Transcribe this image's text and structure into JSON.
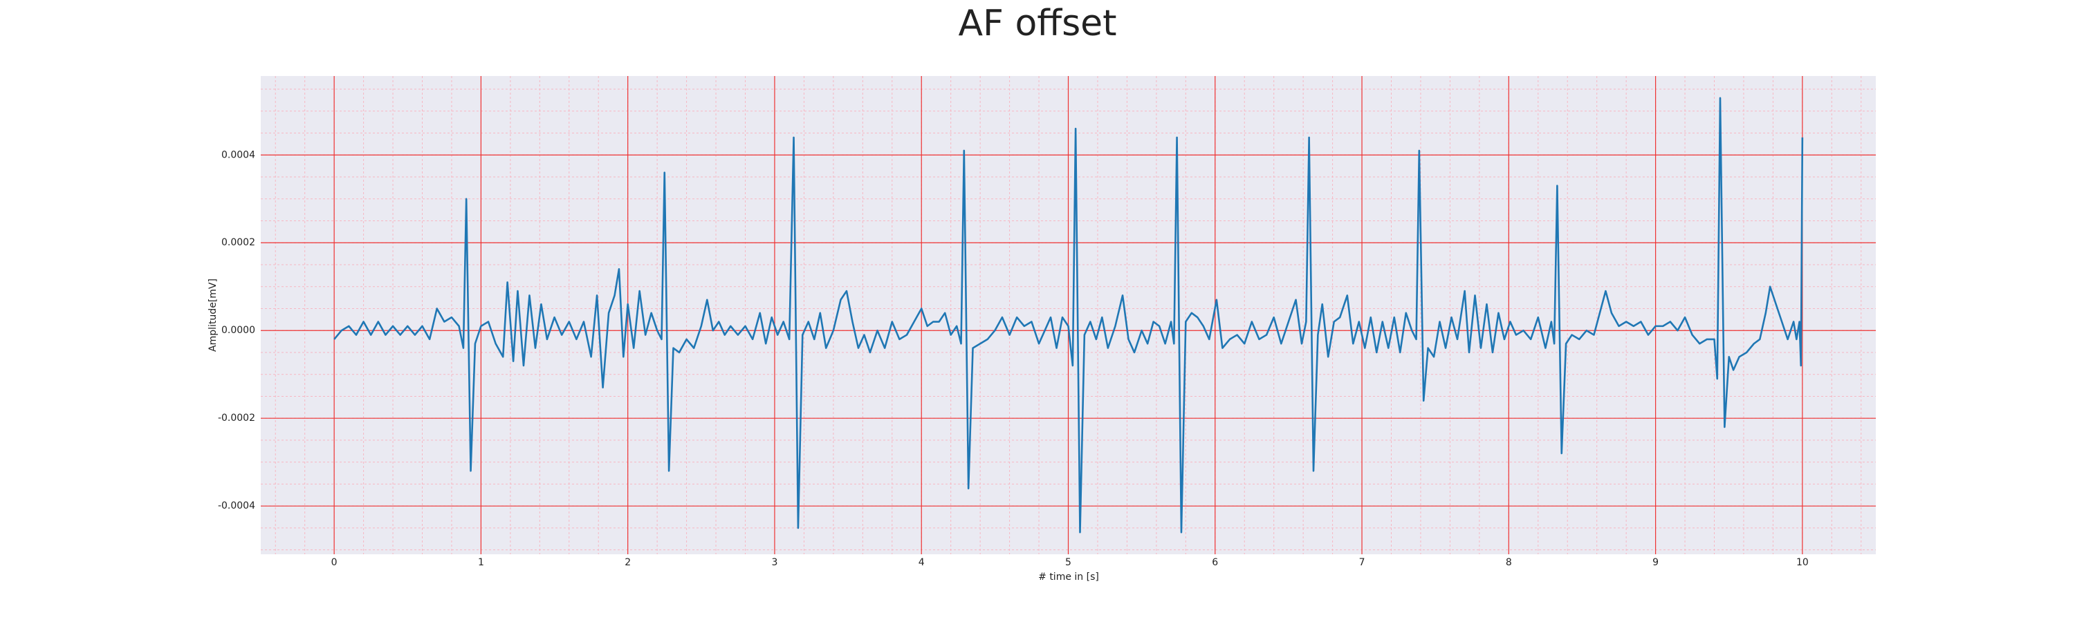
{
  "chart_data": {
    "type": "line",
    "title": "AF offset",
    "xlabel": "# time in [s]",
    "ylabel": "Amplitude[mV]",
    "color": "#1f77b4",
    "grid": true,
    "minor_grid": {
      "x": 0.2,
      "y": 5e-05
    },
    "xlim": [
      -0.5,
      10.5
    ],
    "xticks": [
      0,
      1,
      2,
      3,
      4,
      5,
      6,
      7,
      8,
      9,
      10
    ],
    "ylim": [
      -0.00051,
      0.00058
    ],
    "yticks": [
      {
        "value": -0.0004,
        "label": "-0.0004"
      },
      {
        "value": -0.0002,
        "label": "-0.0002"
      },
      {
        "value": 0,
        "label": "0.0000"
      },
      {
        "value": 0.0002,
        "label": "0.0002"
      },
      {
        "value": 0.0004,
        "label": "0.0004"
      }
    ],
    "x": [
      0.0,
      0.05,
      0.1,
      0.15,
      0.2,
      0.25,
      0.3,
      0.35,
      0.4,
      0.45,
      0.5,
      0.55,
      0.6,
      0.65,
      0.7,
      0.75,
      0.8,
      0.85,
      0.88,
      0.9,
      0.93,
      0.96,
      1.0,
      1.05,
      1.1,
      1.15,
      1.18,
      1.22,
      1.25,
      1.29,
      1.33,
      1.37,
      1.41,
      1.45,
      1.5,
      1.55,
      1.6,
      1.65,
      1.7,
      1.75,
      1.79,
      1.83,
      1.87,
      1.91,
      1.94,
      1.97,
      2.0,
      2.04,
      2.08,
      2.12,
      2.16,
      2.2,
      2.23,
      2.25,
      2.28,
      2.31,
      2.35,
      2.4,
      2.45,
      2.5,
      2.54,
      2.58,
      2.62,
      2.66,
      2.7,
      2.75,
      2.8,
      2.85,
      2.9,
      2.94,
      2.98,
      3.02,
      3.06,
      3.1,
      3.13,
      3.16,
      3.19,
      3.23,
      3.27,
      3.31,
      3.35,
      3.4,
      3.45,
      3.49,
      3.53,
      3.57,
      3.61,
      3.65,
      3.7,
      3.75,
      3.8,
      3.85,
      3.9,
      3.95,
      4.0,
      4.04,
      4.08,
      4.12,
      4.16,
      4.2,
      4.24,
      4.27,
      4.29,
      4.32,
      4.35,
      4.4,
      4.45,
      4.5,
      4.55,
      4.6,
      4.65,
      4.7,
      4.75,
      4.8,
      4.84,
      4.88,
      4.92,
      4.96,
      5.0,
      5.03,
      5.05,
      5.08,
      5.11,
      5.15,
      5.19,
      5.23,
      5.27,
      5.32,
      5.37,
      5.41,
      5.45,
      5.5,
      5.54,
      5.58,
      5.62,
      5.66,
      5.7,
      5.72,
      5.74,
      5.77,
      5.8,
      5.84,
      5.88,
      5.92,
      5.96,
      6.01,
      6.05,
      6.1,
      6.15,
      6.2,
      6.25,
      6.3,
      6.35,
      6.4,
      6.45,
      6.5,
      6.55,
      6.59,
      6.62,
      6.64,
      6.67,
      6.7,
      6.73,
      6.77,
      6.81,
      6.85,
      6.9,
      6.94,
      6.98,
      7.02,
      7.06,
      7.1,
      7.14,
      7.18,
      7.22,
      7.26,
      7.3,
      7.34,
      7.37,
      7.39,
      7.42,
      7.45,
      7.49,
      7.53,
      7.57,
      7.61,
      7.65,
      7.7,
      7.73,
      7.77,
      7.81,
      7.85,
      7.89,
      7.93,
      7.97,
      8.01,
      8.05,
      8.1,
      8.15,
      8.2,
      8.25,
      8.29,
      8.31,
      8.33,
      8.36,
      8.39,
      8.43,
      8.48,
      8.53,
      8.58,
      8.62,
      8.66,
      8.7,
      8.75,
      8.8,
      8.85,
      8.9,
      8.95,
      9.0,
      9.05,
      9.1,
      9.15,
      9.2,
      9.25,
      9.3,
      9.35,
      9.4,
      9.42,
      9.44,
      9.47,
      9.5,
      9.53,
      9.57,
      9.62,
      9.67,
      9.71,
      9.75,
      9.78,
      9.82,
      9.86,
      9.9,
      9.94,
      9.96,
      9.98,
      9.99,
      10.0
    ],
    "values": [
      -2e-05,
      0.0,
      1e-05,
      -1e-05,
      2e-05,
      -1e-05,
      2e-05,
      -1e-05,
      1e-05,
      -1e-05,
      1e-05,
      -1e-05,
      1e-05,
      -2e-05,
      5e-05,
      2e-05,
      3e-05,
      1e-05,
      -4e-05,
      0.0003,
      -0.00032,
      -3e-05,
      1e-05,
      2e-05,
      -3e-05,
      -6e-05,
      0.00011,
      -7e-05,
      9e-05,
      -8e-05,
      8e-05,
      -4e-05,
      6e-05,
      -2e-05,
      3e-05,
      -1e-05,
      2e-05,
      -2e-05,
      2e-05,
      -6e-05,
      8e-05,
      -0.00013,
      4e-05,
      8e-05,
      0.00014,
      -6e-05,
      6e-05,
      -4e-05,
      9e-05,
      -1e-05,
      4e-05,
      0.0,
      -2e-05,
      0.00036,
      -0.00032,
      -4e-05,
      -5e-05,
      -2e-05,
      -4e-05,
      1e-05,
      7e-05,
      0.0,
      2e-05,
      -1e-05,
      1e-05,
      -1e-05,
      1e-05,
      -2e-05,
      4e-05,
      -3e-05,
      3e-05,
      -1e-05,
      2e-05,
      -2e-05,
      0.00044,
      -0.00045,
      -1e-05,
      2e-05,
      -2e-05,
      4e-05,
      -4e-05,
      0.0,
      7e-05,
      9e-05,
      2e-05,
      -4e-05,
      -1e-05,
      -5e-05,
      0.0,
      -4e-05,
      2e-05,
      -2e-05,
      -1e-05,
      2e-05,
      5e-05,
      1e-05,
      2e-05,
      2e-05,
      4e-05,
      -1e-05,
      1e-05,
      -3e-05,
      0.00041,
      -0.00036,
      -4e-05,
      -3e-05,
      -2e-05,
      0.0,
      3e-05,
      -1e-05,
      3e-05,
      1e-05,
      2e-05,
      -3e-05,
      0.0,
      3e-05,
      -4e-05,
      3e-05,
      1e-05,
      -8e-05,
      0.00046,
      -0.00046,
      -1e-05,
      2e-05,
      -2e-05,
      3e-05,
      -4e-05,
      1e-05,
      8e-05,
      -2e-05,
      -5e-05,
      0.0,
      -3e-05,
      2e-05,
      1e-05,
      -3e-05,
      2e-05,
      -3e-05,
      0.00044,
      -0.00046,
      2e-05,
      4e-05,
      3e-05,
      1e-05,
      -2e-05,
      7e-05,
      -4e-05,
      -2e-05,
      -1e-05,
      -3e-05,
      2e-05,
      -2e-05,
      -1e-05,
      3e-05,
      -3e-05,
      2e-05,
      7e-05,
      -3e-05,
      2e-05,
      0.00044,
      -0.00032,
      -1e-05,
      6e-05,
      -6e-05,
      2e-05,
      3e-05,
      8e-05,
      -3e-05,
      2e-05,
      -4e-05,
      3e-05,
      -5e-05,
      2e-05,
      -4e-05,
      3e-05,
      -5e-05,
      4e-05,
      0.0,
      -2e-05,
      0.00041,
      -0.00016,
      -4e-05,
      -6e-05,
      2e-05,
      -4e-05,
      3e-05,
      -2e-05,
      9e-05,
      -5e-05,
      8e-05,
      -4e-05,
      6e-05,
      -5e-05,
      4e-05,
      -2e-05,
      2e-05,
      -1e-05,
      0.0,
      -2e-05,
      3e-05,
      -4e-05,
      2e-05,
      -3e-05,
      0.00033,
      -0.00028,
      -3e-05,
      -1e-05,
      -2e-05,
      0.0,
      -1e-05,
      4e-05,
      9e-05,
      4e-05,
      1e-05,
      2e-05,
      1e-05,
      2e-05,
      -1e-05,
      1e-05,
      1e-05,
      2e-05,
      0.0,
      3e-05,
      -1e-05,
      -3e-05,
      -2e-05,
      -2e-05,
      -0.00011,
      0.00053,
      -0.00022,
      -6e-05,
      -9e-05,
      -6e-05,
      -5e-05,
      -3e-05,
      -2e-05,
      4e-05,
      0.0001,
      6e-05,
      2e-05,
      -2e-05,
      2e-05,
      -2e-05,
      2e-05,
      -8e-05,
      0.00044
    ]
  }
}
